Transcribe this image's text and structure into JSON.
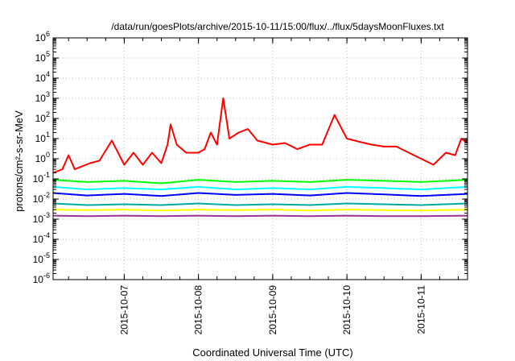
{
  "chart_data": {
    "type": "line",
    "title": "/data/run/goesPlots/archive/2015-10-11/15:00/flux/../flux/5daysMoonFluxes.txt",
    "xlabel": "Coordinated Universal Time (UTC)",
    "ylabel": "protons/cm²-s-sr-MeV",
    "y_scale": "log",
    "ylim": [
      1e-06,
      1000000.0
    ],
    "y_ticks": [
      {
        "value": 1e-06,
        "base": "10",
        "exp": "-6"
      },
      {
        "value": 1e-05,
        "base": "10",
        "exp": "-5"
      },
      {
        "value": 0.0001,
        "base": "10",
        "exp": "-4"
      },
      {
        "value": 0.001,
        "base": "10",
        "exp": "-3"
      },
      {
        "value": 0.01,
        "base": "10",
        "exp": "-2"
      },
      {
        "value": 0.1,
        "base": "10",
        "exp": "-1"
      },
      {
        "value": 1,
        "base": "10",
        "exp": "0"
      },
      {
        "value": 10,
        "base": "10",
        "exp": "1"
      },
      {
        "value": 100,
        "base": "10",
        "exp": "2"
      },
      {
        "value": 1000,
        "base": "10",
        "exp": "3"
      },
      {
        "value": 10000,
        "base": "10",
        "exp": "4"
      },
      {
        "value": 100000,
        "base": "10",
        "exp": "5"
      },
      {
        "value": 1000000,
        "base": "10",
        "exp": "6"
      }
    ],
    "xlim": [
      "2015-10-06 01:00",
      "2015-10-11 15:00"
    ],
    "x_ticks": [
      "2015-10-07",
      "2015-10-08",
      "2015-10-09",
      "2015-10-10",
      "2015-10-11"
    ],
    "grid": true,
    "legend": "none",
    "series": [
      {
        "color": "#ff0000",
        "x": [
          "2015-10-06 01:00",
          "2015-10-06 04:00",
          "2015-10-06 06:00",
          "2015-10-06 08:00",
          "2015-10-06 10:00",
          "2015-10-06 13:00",
          "2015-10-06 16:00",
          "2015-10-06 20:00",
          "2015-10-07 00:00",
          "2015-10-07 03:00",
          "2015-10-07 06:00",
          "2015-10-07 09:00",
          "2015-10-07 12:00",
          "2015-10-07 14:00",
          "2015-10-07 15:00",
          "2015-10-07 17:00",
          "2015-10-07 20:00",
          "2015-10-08 00:00",
          "2015-10-08 02:00",
          "2015-10-08 04:00",
          "2015-10-08 06:00",
          "2015-10-08 08:00",
          "2015-10-08 10:00",
          "2015-10-08 13:00",
          "2015-10-08 16:00",
          "2015-10-08 19:00",
          "2015-10-09 00:00",
          "2015-10-09 04:00",
          "2015-10-09 08:00",
          "2015-10-09 12:00",
          "2015-10-09 16:00",
          "2015-10-09 20:00",
          "2015-10-10 00:00",
          "2015-10-10 04:00",
          "2015-10-10 08:00",
          "2015-10-10 12:00",
          "2015-10-10 16:00",
          "2015-10-10 20:00",
          "2015-10-11 00:00",
          "2015-10-11 04:00",
          "2015-10-11 08:00",
          "2015-10-11 11:00",
          "2015-10-11 13:00",
          "2015-10-11 15:00"
        ],
        "values": [
          0.2,
          0.3,
          1.5,
          0.3,
          0.4,
          0.6,
          0.8,
          8,
          0.5,
          2,
          0.5,
          2,
          0.6,
          5,
          50,
          5,
          2,
          2,
          3,
          20,
          5,
          1000,
          10,
          20,
          30,
          8,
          5,
          6,
          3,
          5,
          5,
          150,
          10,
          7,
          5,
          4,
          4,
          2,
          1,
          0.5,
          2,
          1.5,
          10,
          6
        ]
      },
      {
        "color": "#00ff00",
        "x": [
          "2015-10-06 01:00",
          "2015-10-06 12:00",
          "2015-10-07 00:00",
          "2015-10-07 12:00",
          "2015-10-08 00:00",
          "2015-10-08 12:00",
          "2015-10-09 00:00",
          "2015-10-09 12:00",
          "2015-10-10 00:00",
          "2015-10-10 12:00",
          "2015-10-11 00:00",
          "2015-10-11 15:00"
        ],
        "values": [
          0.09,
          0.07,
          0.08,
          0.06,
          0.09,
          0.07,
          0.08,
          0.07,
          0.09,
          0.08,
          0.07,
          0.09
        ]
      },
      {
        "color": "#00ffff",
        "x": [
          "2015-10-06 01:00",
          "2015-10-06 12:00",
          "2015-10-07 00:00",
          "2015-10-07 12:00",
          "2015-10-08 00:00",
          "2015-10-08 12:00",
          "2015-10-09 00:00",
          "2015-10-09 12:00",
          "2015-10-10 00:00",
          "2015-10-10 12:00",
          "2015-10-11 00:00",
          "2015-10-11 15:00"
        ],
        "values": [
          0.04,
          0.03,
          0.035,
          0.03,
          0.04,
          0.03,
          0.035,
          0.03,
          0.04,
          0.035,
          0.03,
          0.04
        ]
      },
      {
        "color": "#0000ff",
        "x": [
          "2015-10-06 01:00",
          "2015-10-06 12:00",
          "2015-10-07 00:00",
          "2015-10-07 12:00",
          "2015-10-08 00:00",
          "2015-10-08 12:00",
          "2015-10-09 00:00",
          "2015-10-09 12:00",
          "2015-10-10 00:00",
          "2015-10-10 12:00",
          "2015-10-11 00:00",
          "2015-10-11 15:00"
        ],
        "values": [
          0.02,
          0.015,
          0.018,
          0.014,
          0.02,
          0.016,
          0.018,
          0.015,
          0.02,
          0.017,
          0.014,
          0.018
        ]
      },
      {
        "color": "#00aaaa",
        "x": [
          "2015-10-06 01:00",
          "2015-10-06 12:00",
          "2015-10-07 00:00",
          "2015-10-07 12:00",
          "2015-10-08 00:00",
          "2015-10-08 12:00",
          "2015-10-09 00:00",
          "2015-10-09 12:00",
          "2015-10-10 00:00",
          "2015-10-10 12:00",
          "2015-10-11 00:00",
          "2015-10-11 15:00"
        ],
        "values": [
          0.006,
          0.005,
          0.0055,
          0.005,
          0.006,
          0.005,
          0.0055,
          0.005,
          0.006,
          0.0055,
          0.005,
          0.006
        ]
      },
      {
        "color": "#ffff00",
        "x": [
          "2015-10-06 01:00",
          "2015-10-06 12:00",
          "2015-10-07 00:00",
          "2015-10-07 12:00",
          "2015-10-08 00:00",
          "2015-10-08 12:00",
          "2015-10-09 00:00",
          "2015-10-09 12:00",
          "2015-10-10 00:00",
          "2015-10-10 12:00",
          "2015-10-11 00:00",
          "2015-10-11 15:00"
        ],
        "values": [
          0.003,
          0.0028,
          0.003,
          0.0027,
          0.003,
          0.0028,
          0.003,
          0.0027,
          0.003,
          0.0028,
          0.0027,
          0.003
        ]
      },
      {
        "color": "#993399",
        "x": [
          "2015-10-06 01:00",
          "2015-10-06 12:00",
          "2015-10-07 00:00",
          "2015-10-07 12:00",
          "2015-10-08 00:00",
          "2015-10-08 12:00",
          "2015-10-09 00:00",
          "2015-10-09 12:00",
          "2015-10-10 00:00",
          "2015-10-10 12:00",
          "2015-10-11 00:00",
          "2015-10-11 15:00"
        ],
        "values": [
          0.0015,
          0.0014,
          0.0015,
          0.0014,
          0.0015,
          0.0014,
          0.0015,
          0.0014,
          0.0015,
          0.0014,
          0.0014,
          0.0015
        ]
      }
    ]
  }
}
